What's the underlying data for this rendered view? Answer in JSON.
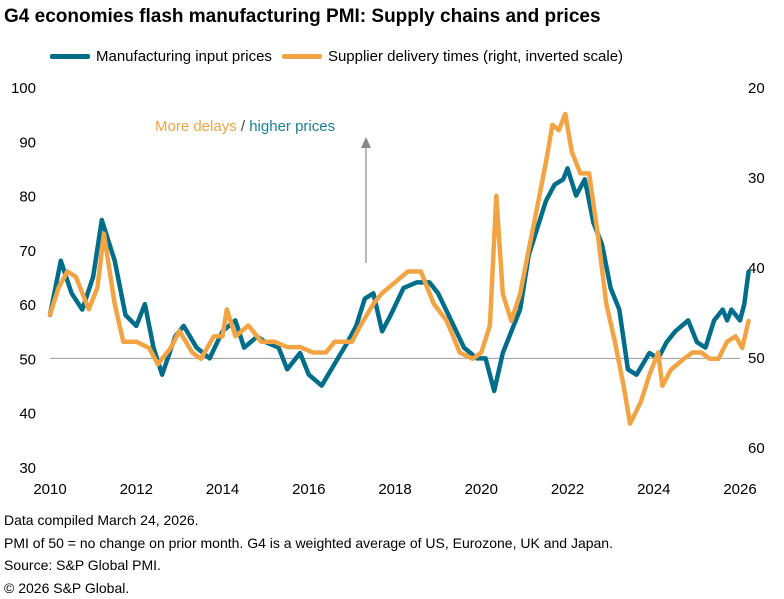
{
  "chart_data": {
    "type": "line",
    "title": "G4 economies flash manufacturing PMI: Supply chains and prices",
    "left_axis": {
      "ylim": [
        30,
        100
      ],
      "ticks": [
        "100",
        "90",
        "80",
        "70",
        "60",
        "50",
        "40",
        "30"
      ]
    },
    "right_axis": {
      "ylim": [
        20,
        60
      ],
      "inverted": true,
      "ticks": [
        "20",
        "30",
        "40",
        "50",
        "60"
      ]
    },
    "x_ticks": [
      "2010",
      "2012",
      "2014",
      "2016",
      "2018",
      "2020",
      "2022",
      "2024",
      "2026"
    ],
    "xlim": [
      2010,
      2026.35
    ],
    "reference_line": 50,
    "annotation": {
      "part1": "More delays",
      "sep": " / ",
      "part2": "higher prices"
    },
    "series": [
      {
        "name": "Manufacturing input prices",
        "axis": "left",
        "color": "#006e8a",
        "x": [
          2010.0,
          2010.25,
          2010.5,
          2010.75,
          2011.0,
          2011.2,
          2011.5,
          2011.75,
          2012.0,
          2012.2,
          2012.4,
          2012.6,
          2012.9,
          2013.1,
          2013.4,
          2013.7,
          2014.0,
          2014.3,
          2014.5,
          2014.8,
          2015.0,
          2015.3,
          2015.5,
          2015.8,
          2016.0,
          2016.3,
          2016.6,
          2016.9,
          2017.1,
          2017.3,
          2017.5,
          2017.7,
          2017.9,
          2018.2,
          2018.5,
          2018.8,
          2019.0,
          2019.3,
          2019.6,
          2019.9,
          2020.1,
          2020.3,
          2020.5,
          2020.7,
          2020.9,
          2021.1,
          2021.3,
          2021.5,
          2021.7,
          2021.9,
          2022.0,
          2022.2,
          2022.4,
          2022.6,
          2022.8,
          2023.0,
          2023.2,
          2023.4,
          2023.6,
          2023.9,
          2024.1,
          2024.3,
          2024.5,
          2024.8,
          2025.0,
          2025.2,
          2025.4,
          2025.6,
          2025.7,
          2025.8,
          2026.0,
          2026.1,
          2026.2
        ],
        "y": [
          58,
          68,
          62,
          59,
          65,
          75.5,
          68,
          58,
          56,
          60,
          52,
          47,
          54,
          56,
          52,
          50,
          55,
          57,
          52,
          54,
          53,
          52,
          48,
          51,
          47,
          45,
          49,
          53,
          56,
          61,
          62,
          55,
          58,
          63,
          64,
          64,
          62,
          57,
          52,
          50,
          50,
          44,
          51,
          55,
          59,
          69,
          74,
          79,
          82,
          83,
          85,
          80,
          83,
          75,
          71,
          63,
          59,
          48,
          47,
          51,
          50,
          53,
          55,
          57,
          53,
          52,
          57,
          59,
          57,
          59,
          57,
          60,
          66
        ]
      },
      {
        "name": "Supplier delivery times (right, inverted scale)",
        "axis": "right",
        "color": "#f2a444",
        "x": [
          2010.0,
          2010.2,
          2010.4,
          2010.6,
          2010.9,
          2011.1,
          2011.25,
          2011.5,
          2011.7,
          2012.0,
          2012.3,
          2012.5,
          2012.8,
          2013.0,
          2013.3,
          2013.5,
          2013.8,
          2014.0,
          2014.1,
          2014.3,
          2014.6,
          2014.9,
          2015.2,
          2015.5,
          2015.8,
          2016.1,
          2016.4,
          2016.6,
          2017.0,
          2017.2,
          2017.5,
          2017.7,
          2018.0,
          2018.3,
          2018.6,
          2018.9,
          2019.2,
          2019.5,
          2019.8,
          2020.0,
          2020.2,
          2020.35,
          2020.5,
          2020.7,
          2020.9,
          2021.1,
          2021.3,
          2021.5,
          2021.65,
          2021.8,
          2021.95,
          2022.1,
          2022.3,
          2022.5,
          2022.7,
          2022.9,
          2023.1,
          2023.3,
          2023.45,
          2023.7,
          2023.9,
          2024.1,
          2024.2,
          2024.4,
          2024.7,
          2024.9,
          2025.1,
          2025.3,
          2025.5,
          2025.7,
          2025.9,
          2026.05,
          2026.2
        ],
        "y": [
          45.3,
          42.3,
          40.5,
          41.1,
          44.7,
          42.3,
          36.3,
          44.1,
          48.3,
          48.3,
          49,
          50.8,
          49,
          47.1,
          49.5,
          50.2,
          47.7,
          47.7,
          44.7,
          47.7,
          46.5,
          48.3,
          48.3,
          48.9,
          48.9,
          49.5,
          49.5,
          48.3,
          48.3,
          46.5,
          44.1,
          42.9,
          41.7,
          40.5,
          40.5,
          44.1,
          46,
          49.5,
          50.2,
          49.5,
          46.5,
          32.1,
          43,
          46,
          43,
          38.1,
          33.3,
          28.4,
          24.2,
          24.8,
          23,
          27.2,
          29.6,
          29.6,
          36.3,
          44.1,
          48.3,
          53.2,
          57.4,
          55,
          52,
          49.5,
          53.2,
          51.4,
          50.2,
          49.5,
          49.5,
          50.2,
          50.2,
          48.3,
          47.7,
          49,
          46
        ]
      }
    ]
  },
  "footnotes": [
    "Data compiled March 24, 2026.",
    "PMI of 50 = no change on prior month. G4 is a weighted average of US, Eurozone, UK and Japan.",
    "Source: S&P Global PMI.",
    "© 2026 S&P Global."
  ]
}
